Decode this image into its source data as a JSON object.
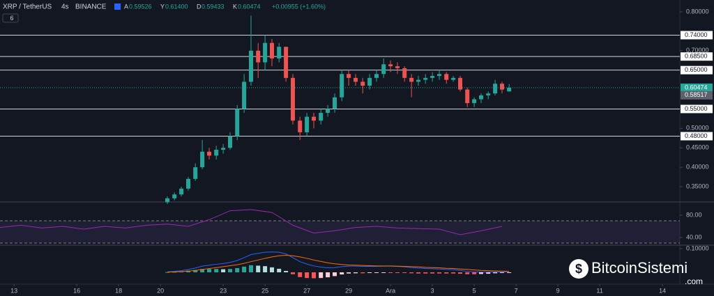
{
  "chart_data": {
    "type": "candlestick",
    "symbol": "XRP / TetherUS",
    "interval": "4s",
    "exchange": "BINANCE",
    "legend": [
      {
        "key": "A",
        "text": "0.59526"
      },
      {
        "key": "Y",
        "text": "0.61400"
      },
      {
        "key": "D",
        "text": "0.59433"
      },
      {
        "key": "K",
        "text": "0.60474"
      }
    ],
    "change": "+0.00955 (+1.60%)",
    "indicator_count": "6",
    "up_color": "#26a69a",
    "down_color": "#ef5350",
    "x": [
      20.33,
      20.67,
      21,
      21.33,
      21.67,
      22,
      22.33,
      22.67,
      23,
      23.33,
      23.67,
      24,
      24.33,
      24.67,
      25,
      25.33,
      25.67,
      26,
      26.33,
      26.67,
      27,
      27.33,
      27.67,
      28,
      28.33,
      28.67,
      29,
      29.33,
      29.67,
      30,
      30.33,
      30.67,
      31,
      31.33,
      31.67,
      32,
      32.33,
      32.67,
      33,
      33.33,
      33.67,
      34,
      34.33,
      34.67,
      35,
      35.33,
      35.67,
      36,
      36.33,
      36.67
    ],
    "open": [
      0.31,
      0.32,
      0.33,
      0.345,
      0.37,
      0.4,
      0.44,
      0.43,
      0.445,
      0.45,
      0.48,
      0.55,
      0.62,
      0.7,
      0.67,
      0.72,
      0.68,
      0.71,
      0.63,
      0.52,
      0.49,
      0.53,
      0.52,
      0.54,
      0.55,
      0.58,
      0.64,
      0.63,
      0.62,
      0.61,
      0.63,
      0.64,
      0.665,
      0.66,
      0.655,
      0.63,
      0.62,
      0.625,
      0.63,
      0.635,
      0.64,
      0.625,
      0.63,
      0.6,
      0.565,
      0.575,
      0.585,
      0.59,
      0.615,
      0.59526
    ],
    "high": [
      0.325,
      0.335,
      0.35,
      0.375,
      0.41,
      0.47,
      0.45,
      0.455,
      0.46,
      0.49,
      0.56,
      0.64,
      0.79,
      0.72,
      0.74,
      0.73,
      0.72,
      0.71,
      0.64,
      0.53,
      0.54,
      0.54,
      0.55,
      0.56,
      0.59,
      0.65,
      0.65,
      0.64,
      0.63,
      0.64,
      0.65,
      0.68,
      0.675,
      0.67,
      0.66,
      0.64,
      0.635,
      0.64,
      0.645,
      0.65,
      0.645,
      0.635,
      0.635,
      0.605,
      0.58,
      0.59,
      0.595,
      0.625,
      0.62,
      0.614
    ],
    "low": [
      0.305,
      0.315,
      0.325,
      0.34,
      0.365,
      0.395,
      0.42,
      0.42,
      0.435,
      0.445,
      0.47,
      0.54,
      0.61,
      0.63,
      0.65,
      0.66,
      0.67,
      0.62,
      0.51,
      0.47,
      0.48,
      0.5,
      0.51,
      0.53,
      0.54,
      0.57,
      0.61,
      0.61,
      0.59,
      0.6,
      0.62,
      0.63,
      0.645,
      0.64,
      0.62,
      0.58,
      0.61,
      0.615,
      0.62,
      0.625,
      0.615,
      0.62,
      0.595,
      0.555,
      0.555,
      0.565,
      0.575,
      0.585,
      0.59,
      0.59433
    ],
    "close": [
      0.32,
      0.33,
      0.345,
      0.37,
      0.4,
      0.44,
      0.43,
      0.445,
      0.45,
      0.48,
      0.55,
      0.62,
      0.7,
      0.67,
      0.72,
      0.68,
      0.71,
      0.63,
      0.52,
      0.49,
      0.53,
      0.52,
      0.54,
      0.55,
      0.58,
      0.64,
      0.63,
      0.62,
      0.61,
      0.63,
      0.64,
      0.665,
      0.66,
      0.655,
      0.63,
      0.62,
      0.625,
      0.63,
      0.635,
      0.64,
      0.625,
      0.63,
      0.6,
      0.565,
      0.575,
      0.585,
      0.59,
      0.615,
      0.6,
      0.60474
    ],
    "xlim": [
      12.33,
      44.83
    ],
    "ylim": [
      0.3106,
      0.8305
    ],
    "yticks": [
      {
        "value": 0.8,
        "label": "0.80000"
      },
      {
        "value": 0.7,
        "label": "0.70000"
      },
      {
        "value": 0.5,
        "label": "0.50000"
      },
      {
        "value": 0.45,
        "label": "0.45000"
      },
      {
        "value": 0.4,
        "label": "0.40000"
      },
      {
        "value": 0.35,
        "label": "0.35000"
      }
    ],
    "xticks": [
      13,
      16,
      18,
      20,
      23,
      25,
      27,
      29,
      {
        "value": 31,
        "label": "Ara"
      },
      {
        "value": 33,
        "label": "3"
      },
      {
        "value": 35,
        "label": "5"
      },
      {
        "value": 37,
        "label": "7"
      },
      {
        "value": 39,
        "label": "9"
      },
      {
        "value": 41,
        "label": "11"
      },
      {
        "value": 44,
        "label": "14"
      }
    ],
    "levels": [
      {
        "value": 0.74,
        "label": "0.74000"
      },
      {
        "value": 0.685,
        "label": "0.68500"
      },
      {
        "value": 0.65,
        "label": "0.65000"
      },
      {
        "value": 0.55,
        "label": "0.55000"
      },
      {
        "value": 0.48,
        "label": "0.48000"
      }
    ],
    "price_labels": [
      {
        "value": 0.58517,
        "color": "#5d606b"
      }
    ],
    "rsi": {
      "color": "#9c27b0",
      "x": [
        12.33,
        13.33,
        14.33,
        15.33,
        16.33,
        17.33,
        18.33,
        19.33,
        20.33,
        21.33,
        22.33,
        23.33,
        24.33,
        25.33,
        26.33,
        27.33,
        28.33,
        29.33,
        30.33,
        31.33,
        32.33,
        33.33,
        34.33,
        35.33,
        36.33
      ],
      "values": [
        58,
        62,
        57,
        60,
        55,
        60,
        57,
        62,
        64,
        60,
        72,
        88,
        90,
        85,
        62,
        48,
        52,
        58,
        60,
        57,
        56,
        55,
        45,
        52,
        60
      ],
      "ylim": [
        26.25,
        103.75
      ],
      "bands": [
        70,
        30
      ],
      "yticks": [
        {
          "value": 80,
          "label": "80.00"
        },
        {
          "value": 40,
          "label": "40.00"
        }
      ]
    },
    "macd": {
      "ylim": [
        -0.05,
        0.1147
      ],
      "yticks": [
        {
          "value": 0.1,
          "label": "0.10000"
        }
      ],
      "macd_color": "#2962ff",
      "signal_color": "#ff6d00",
      "hist_colors": [
        "#26a69a",
        "#b2dfdb",
        "#ff5252",
        "#ffcdd2"
      ],
      "macd": [
        0.002,
        0.004,
        0.007,
        0.012,
        0.018,
        0.026,
        0.03,
        0.034,
        0.037,
        0.042,
        0.05,
        0.062,
        0.075,
        0.08,
        0.085,
        0.086,
        0.085,
        0.078,
        0.062,
        0.045,
        0.035,
        0.027,
        0.022,
        0.019,
        0.02,
        0.024,
        0.026,
        0.026,
        0.025,
        0.025,
        0.025,
        0.026,
        0.026,
        0.025,
        0.023,
        0.02,
        0.018,
        0.016,
        0.015,
        0.014,
        0.012,
        0.011,
        0.008,
        0.004,
        0.002,
        0.001,
        0.001,
        0.002,
        0.002,
        0.003
      ],
      "signal": [
        0.001,
        0.002,
        0.003,
        0.005,
        0.008,
        0.012,
        0.016,
        0.02,
        0.024,
        0.028,
        0.032,
        0.038,
        0.045,
        0.052,
        0.059,
        0.065,
        0.07,
        0.072,
        0.07,
        0.065,
        0.059,
        0.052,
        0.046,
        0.04,
        0.036,
        0.033,
        0.031,
        0.03,
        0.029,
        0.028,
        0.027,
        0.027,
        0.027,
        0.026,
        0.025,
        0.024,
        0.023,
        0.021,
        0.02,
        0.019,
        0.017,
        0.016,
        0.014,
        0.012,
        0.01,
        0.008,
        0.007,
        0.006,
        0.005,
        0.004
      ],
      "histogram": [
        0.001,
        0.002,
        0.004,
        0.007,
        0.01,
        0.014,
        0.014,
        0.014,
        0.013,
        0.014,
        0.018,
        0.024,
        0.03,
        0.028,
        0.026,
        0.021,
        0.015,
        0.006,
        -0.008,
        -0.02,
        -0.024,
        -0.025,
        -0.024,
        -0.021,
        -0.016,
        -0.009,
        -0.005,
        -0.004,
        -0.004,
        -0.003,
        -0.002,
        -0.001,
        -0.001,
        -0.001,
        -0.002,
        -0.004,
        -0.005,
        -0.005,
        -0.005,
        -0.005,
        -0.005,
        -0.005,
        -0.006,
        -0.008,
        -0.008,
        -0.007,
        -0.006,
        -0.004,
        -0.003,
        -0.001
      ]
    },
    "watermark": {
      "brand": "BitcoinSistemi",
      "domain": ".com"
    }
  }
}
